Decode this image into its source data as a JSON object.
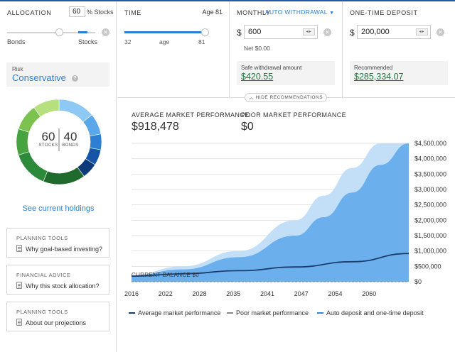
{
  "allocation": {
    "header": "ALLOCATION",
    "stocks_value": "60",
    "stocks_suffix": "% Stocks",
    "label_left": "Bonds",
    "label_right": "Stocks",
    "slider_fraction": 0.6
  },
  "risk": {
    "label": "Risk",
    "value": "Conservative"
  },
  "donut": {
    "stocks": "60",
    "stocks_label": "STOCKS",
    "bonds": "40",
    "bonds_label": "BONDS",
    "colors": [
      "#8ec8f5",
      "#5aa8ea",
      "#2d7fd3",
      "#1655a5",
      "#0d3a78",
      "#1f6b2e",
      "#2d8a3a",
      "#47a33f",
      "#7cc24f",
      "#b6df7e"
    ]
  },
  "holdings_link": "See current holdings",
  "cards": [
    {
      "heading": "PLANNING TOOLS",
      "text": "Why goal-based investing?"
    },
    {
      "heading": "FINANCIAL ADVICE",
      "text": "Why this stock allocation?"
    },
    {
      "heading": "PLANNING TOOLS",
      "text": "About our projections"
    }
  ],
  "time": {
    "header": "TIME",
    "age_label": "Age 81",
    "min": "32",
    "axis_label": "age",
    "max": "81",
    "slider_fraction": 1.0
  },
  "monthly": {
    "header": "MONTHLY",
    "mode": "AUTO WITHDRAWAL",
    "currency": "$",
    "value": "600",
    "net": "Net $0.00",
    "safe_label": "Safe withdrawal amount",
    "safe_value": "$420.55"
  },
  "deposit": {
    "header": "ONE-TIME DEPOSIT",
    "currency": "$",
    "value": "200,000",
    "rec_label": "Recommended",
    "rec_value": "$285,334.07"
  },
  "hide_recs": "HIDE RECOMMENDATIONS",
  "stats": {
    "avg_label": "AVERAGE MARKET PERFORMANCE",
    "avg_value": "$918,478",
    "poor_label": "POOR MARKET PERFORMANCE",
    "poor_value": "$0"
  },
  "current_balance": "CURRENT BALANCE $0",
  "legend": [
    {
      "label": "Average market performance",
      "color": "#1a3d6e"
    },
    {
      "label": "Poor market performance",
      "color": "#888888"
    },
    {
      "label": "Auto deposit and one-time deposit",
      "color": "#2d86e0"
    }
  ],
  "chart_data": {
    "type": "area",
    "x_ticks": [
      "2016",
      "2022",
      "2028",
      "2035",
      "2041",
      "2047",
      "2054",
      "2060"
    ],
    "y_ticks": [
      "$4,500,000",
      "$4,000,000",
      "$3,500,000",
      "$3,000,000",
      "$2,500,000",
      "$2,000,000",
      "$1,500,000",
      "$1,000,000",
      "$500,000",
      "$0"
    ],
    "ylim": [
      0,
      4500000
    ],
    "xlim": [
      2016,
      2065
    ],
    "series": [
      {
        "name": "Average market performance",
        "x": [
          2016,
          2025,
          2035,
          2045,
          2055,
          2065
        ],
        "y": [
          180000,
          260000,
          360000,
          480000,
          650000,
          918478
        ]
      },
      {
        "name": "Poor market performance",
        "x": [
          2016,
          2030,
          2045,
          2065
        ],
        "y": [
          0,
          0,
          0,
          0
        ]
      }
    ],
    "bands": [
      {
        "role": "upper",
        "x": [
          2016,
          2025,
          2035,
          2045,
          2050,
          2055,
          2060,
          2065
        ],
        "y": [
          220000,
          500000,
          1000000,
          2000000,
          2800000,
          3700000,
          4500000,
          4500000
        ],
        "color": "#c3dff7"
      },
      {
        "role": "mid",
        "x": [
          2016,
          2025,
          2035,
          2045,
          2050,
          2055,
          2060,
          2065
        ],
        "y": [
          200000,
          400000,
          800000,
          1500000,
          2100000,
          2900000,
          3800000,
          4500000
        ],
        "color": "#6bb0ec"
      }
    ],
    "colors": {
      "band_light": "#c3dff7",
      "band_mid": "#6bb0ec",
      "average_line": "#1a3d6e",
      "poor_line": "#8a8a8a"
    },
    "grid": true
  }
}
